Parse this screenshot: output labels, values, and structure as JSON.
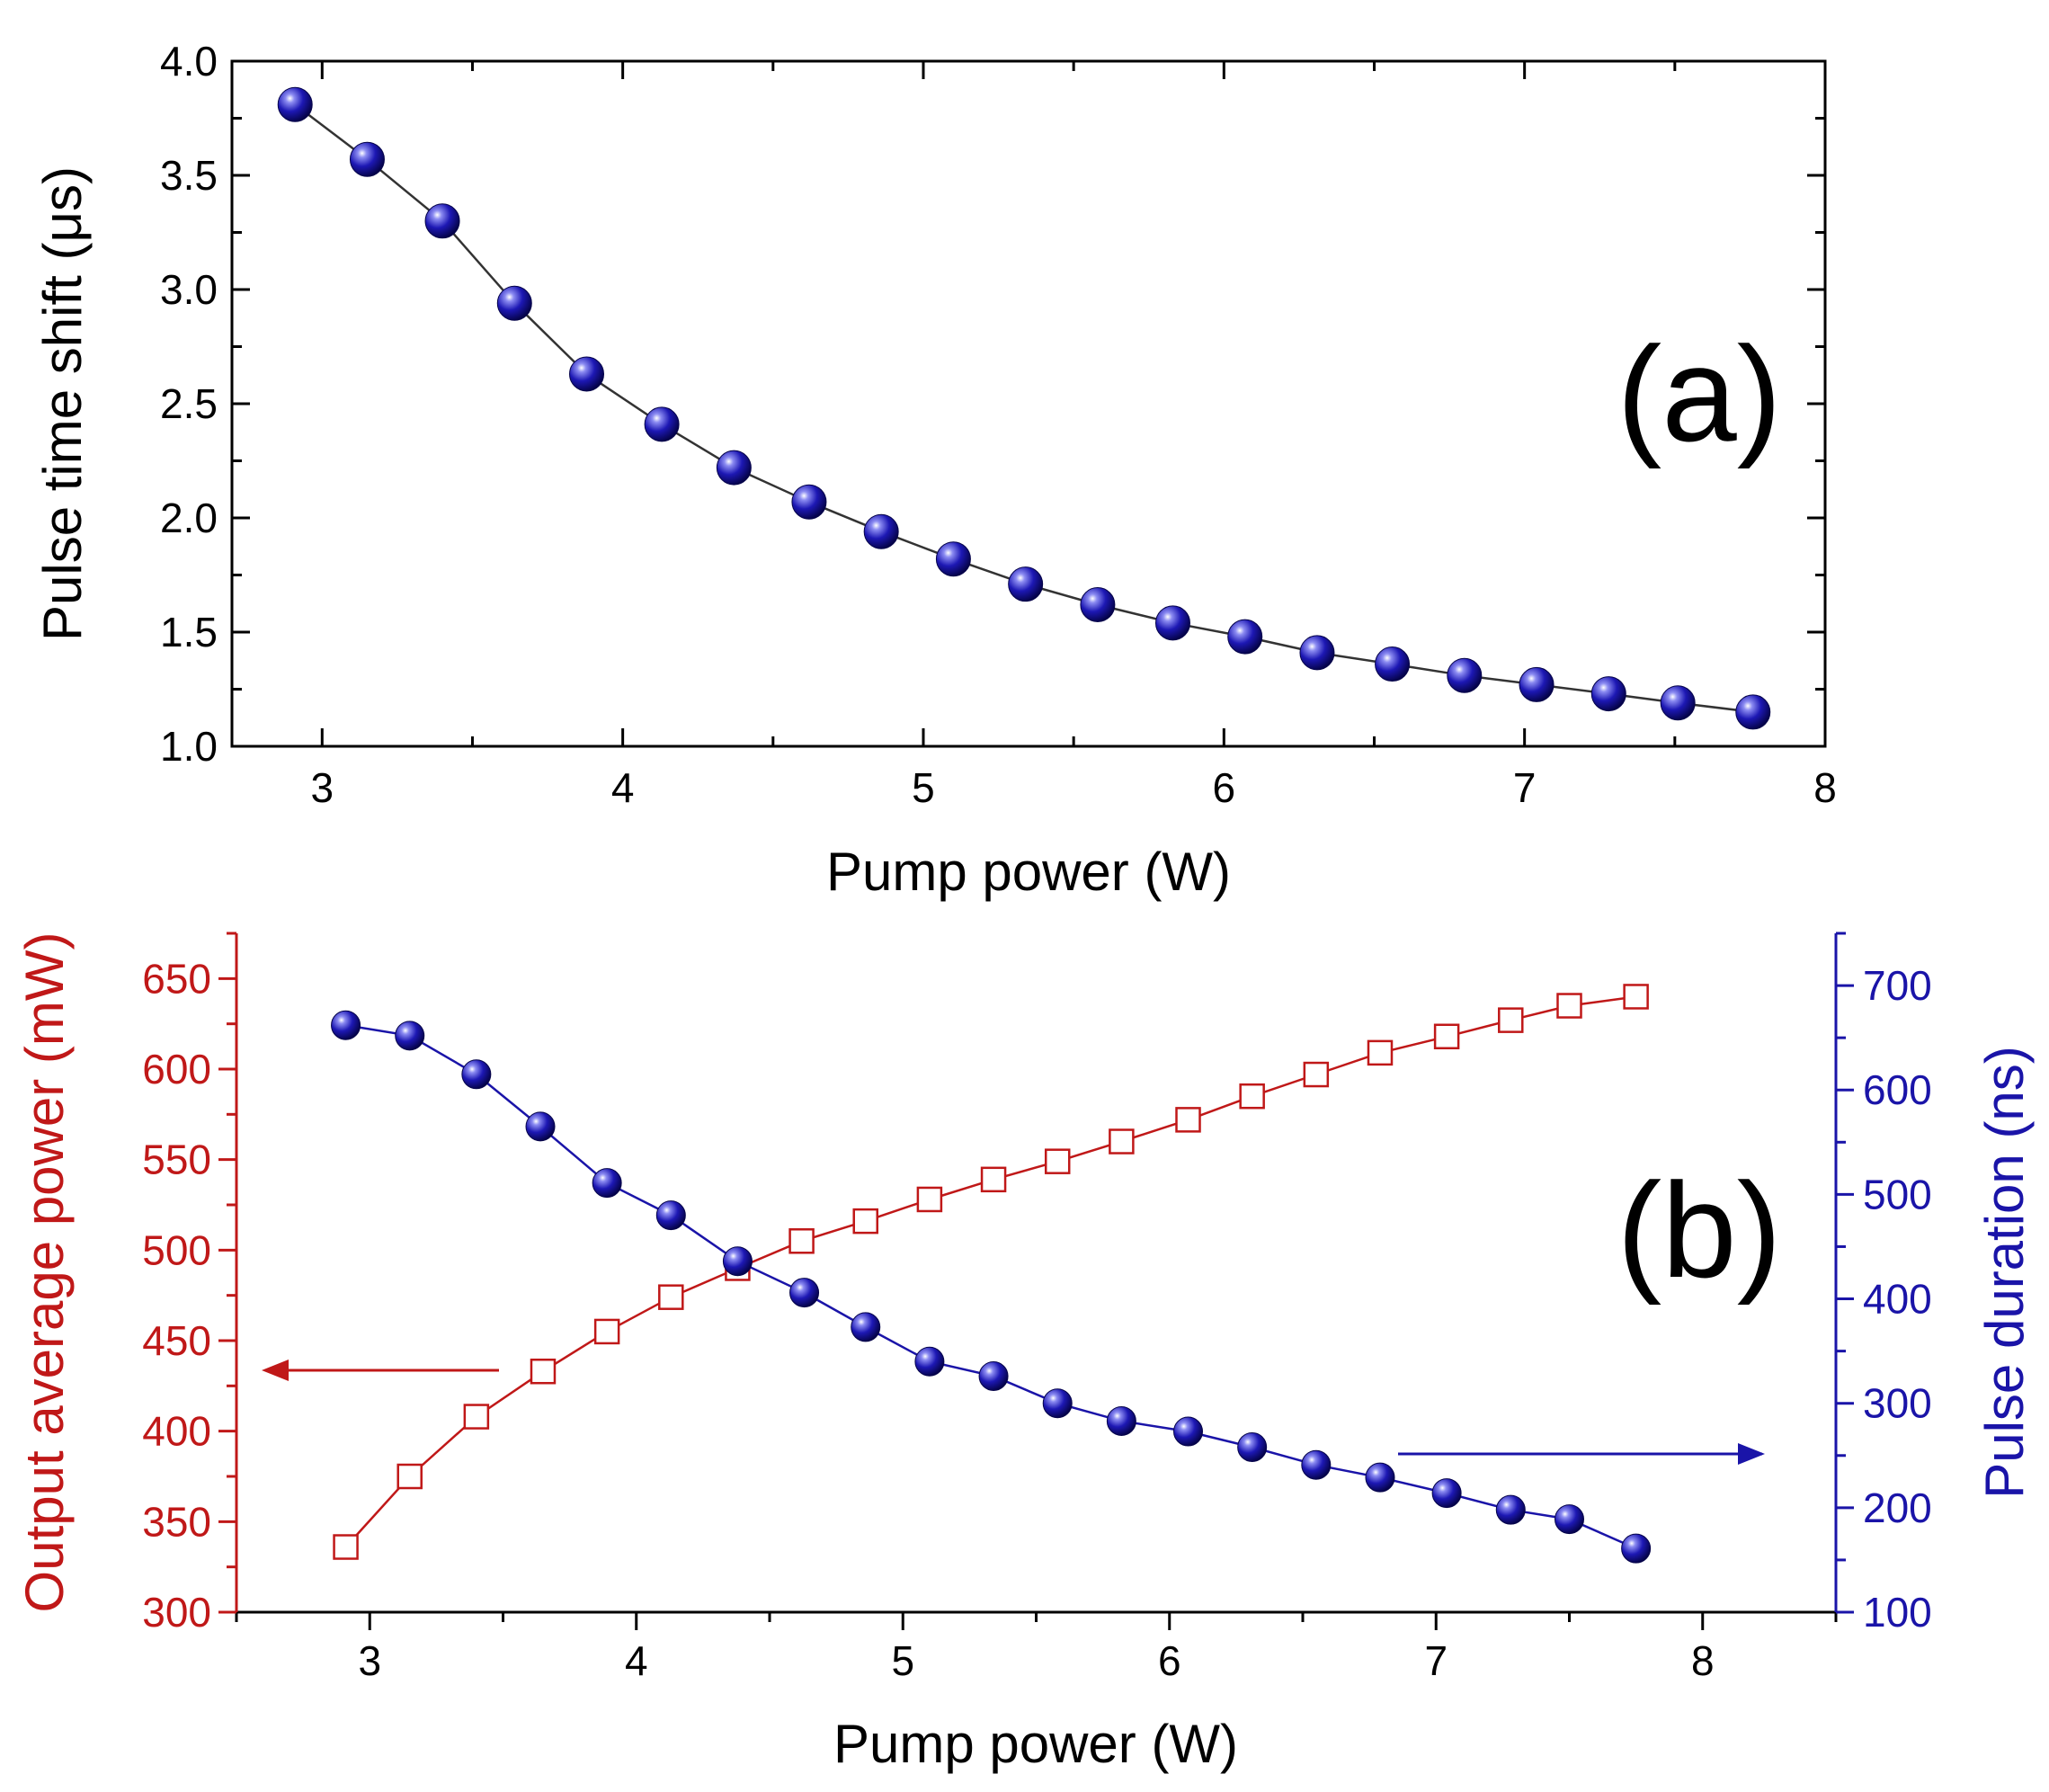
{
  "chart_data": [
    {
      "type": "line",
      "panel_label": "(a)",
      "xlabel": "Pump power (W)",
      "ylabel": "Pulse time shift (μs)",
      "xlim": [
        2.7,
        8
      ],
      "ylim": [
        1.0,
        4.0
      ],
      "xticks": [
        "3",
        "4",
        "5",
        "6",
        "7",
        "8"
      ],
      "yticks": [
        "1.0",
        "1.5",
        "2.0",
        "2.5",
        "3.0",
        "3.5",
        "4.0"
      ],
      "series": [
        {
          "name": "Pulse time shift",
          "marker": "filled-sphere",
          "line_color": "#333333",
          "marker_color": "#1a14a8",
          "x": [
            2.91,
            3.15,
            3.4,
            3.64,
            3.88,
            4.13,
            4.37,
            4.62,
            4.86,
            5.1,
            5.34,
            5.58,
            5.83,
            6.07,
            6.31,
            6.56,
            6.8,
            7.04,
            7.28,
            7.51,
            7.76
          ],
          "y": [
            3.81,
            3.57,
            3.3,
            2.94,
            2.63,
            2.41,
            2.22,
            2.07,
            1.94,
            1.82,
            1.71,
            1.62,
            1.54,
            1.48,
            1.41,
            1.36,
            1.31,
            1.27,
            1.23,
            1.19,
            1.15
          ]
        }
      ]
    },
    {
      "type": "line",
      "panel_label": "(b)",
      "xlabel": "Pump power (W)",
      "ylabel_left": "Output average power (mW)",
      "ylabel_right": "Pulse duration (ns)",
      "xlim": [
        2.5,
        8.5
      ],
      "ylim_left": [
        300,
        675
      ],
      "ylim_right": [
        100,
        750
      ],
      "xticks": [
        "3",
        "4",
        "5",
        "6",
        "7",
        "8"
      ],
      "yticks_left": [
        "300",
        "350",
        "400",
        "450",
        "500",
        "550",
        "600",
        "650"
      ],
      "yticks_right": [
        "100",
        "200",
        "300",
        "400",
        "500",
        "600",
        "700"
      ],
      "left_color": "#c01818",
      "right_color": "#1a14a8",
      "series": [
        {
          "name": "Output average power",
          "axis": "left",
          "marker": "open-square",
          "color": "#c01818",
          "x": [
            2.91,
            3.15,
            3.4,
            3.65,
            3.89,
            4.13,
            4.38,
            4.62,
            4.86,
            5.1,
            5.34,
            5.58,
            5.82,
            6.07,
            6.31,
            6.55,
            6.79,
            7.04,
            7.28,
            7.5,
            7.75
          ],
          "y": [
            336,
            375,
            408,
            433,
            455,
            474,
            490,
            505,
            516,
            528,
            539,
            549,
            560,
            572,
            585,
            597,
            609,
            618,
            627,
            635,
            640
          ]
        },
        {
          "name": "Pulse duration",
          "axis": "right",
          "marker": "filled-sphere",
          "color": "#1a14a8",
          "x": [
            2.91,
            3.15,
            3.4,
            3.64,
            3.89,
            4.13,
            4.38,
            4.63,
            4.86,
            5.1,
            5.34,
            5.58,
            5.82,
            6.07,
            6.31,
            6.55,
            6.79,
            7.04,
            7.28,
            7.5,
            7.75
          ],
          "y": [
            662,
            652,
            615,
            565,
            511,
            480,
            436,
            406,
            373,
            340,
            326,
            300,
            283,
            273,
            258,
            241,
            229,
            214,
            198,
            189,
            161
          ]
        }
      ],
      "arrows": [
        {
          "points_to": "left axis",
          "color": "#c01818"
        },
        {
          "points_to": "right axis",
          "color": "#1a14a8"
        }
      ]
    }
  ]
}
